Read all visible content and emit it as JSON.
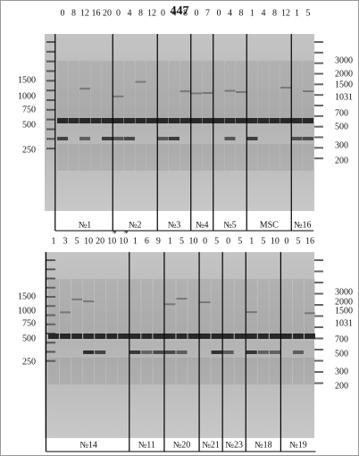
{
  "title": "447",
  "panels": [
    {
      "left_markers": [
        "1500",
        "1000",
        "750",
        "500",
        "250"
      ],
      "right_markers": [
        "3000",
        "2000",
        "1500",
        "1031",
        "700",
        "500",
        "300",
        "200"
      ],
      "groups": [
        {
          "label": "№1",
          "lanes": [
            "0",
            "8",
            "12",
            "16",
            "20"
          ]
        },
        {
          "label": "№2",
          "lanes": [
            "0",
            "4",
            "8",
            "12"
          ]
        },
        {
          "label": "№3",
          "lanes": [
            "0",
            "4",
            "8"
          ]
        },
        {
          "label": "№4",
          "lanes": [
            "0",
            "7"
          ]
        },
        {
          "label": "№5",
          "lanes": [
            "0",
            "4",
            "8"
          ]
        },
        {
          "label": "MSC",
          "lanes": [
            "1",
            "4",
            "8",
            "12"
          ]
        },
        {
          "label": "№16",
          "lanes": [
            "1",
            "5"
          ]
        }
      ]
    },
    {
      "left_markers": [
        "1500",
        "1000",
        "750",
        "500",
        "250"
      ],
      "right_markers": [
        "3000",
        "2000",
        "1500",
        "1031",
        "700",
        "500",
        "300",
        "200"
      ],
      "groups": [
        {
          "label": "№14",
          "lanes": [
            "1",
            "3",
            "5",
            "10",
            "20",
            {
              "label": "10",
              "note": "*"
            },
            {
              "label": "10",
              "note": "*"
            }
          ]
        },
        {
          "label": "№11",
          "lanes": [
            "1",
            "6",
            "9"
          ]
        },
        {
          "label": "№20",
          "lanes": [
            "1",
            "5",
            "10"
          ]
        },
        {
          "label": "№21",
          "lanes": [
            "0",
            "5"
          ]
        },
        {
          "label": "№23",
          "lanes": [
            "0",
            "5"
          ]
        },
        {
          "label": "№18",
          "lanes": [
            "1",
            "5",
            "10"
          ]
        },
        {
          "label": "№19",
          "lanes": [
            "0",
            "5",
            "16"
          ]
        }
      ]
    }
  ]
}
